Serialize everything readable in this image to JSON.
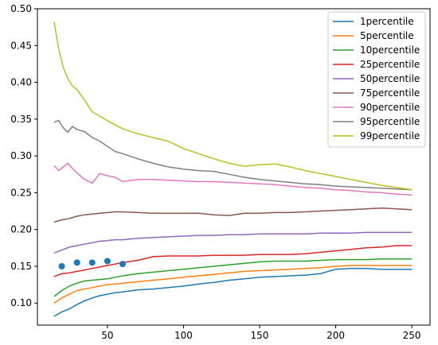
{
  "chart_data": {
    "type": "line",
    "title": "",
    "xlabel": "",
    "ylabel": "",
    "xlim": [
      4,
      262
    ],
    "ylim": [
      0.07,
      0.5
    ],
    "x_ticks": [
      50,
      100,
      150,
      200,
      250
    ],
    "y_ticks": [
      0.1,
      0.15,
      0.2,
      0.25,
      0.3,
      0.35,
      0.4,
      0.45,
      0.5
    ],
    "x_tick_labels": [
      "50",
      "100",
      "150",
      "200",
      "250"
    ],
    "y_tick_labels": [
      "0.10",
      "0.15",
      "0.20",
      "0.25",
      "0.30",
      "0.35",
      "0.40",
      "0.45",
      "0.50"
    ],
    "grid": false,
    "legend_position": "top-right",
    "series": [
      {
        "name": "1percentile",
        "color": "#1f77b4",
        "x": [
          15,
          20,
          25,
          30,
          35,
          40,
          45,
          50,
          55,
          60,
          70,
          80,
          90,
          100,
          110,
          120,
          130,
          140,
          150,
          160,
          170,
          180,
          190,
          200,
          210,
          220,
          230,
          240,
          250
        ],
        "y": [
          0.082,
          0.088,
          0.092,
          0.098,
          0.103,
          0.107,
          0.11,
          0.112,
          0.114,
          0.115,
          0.118,
          0.119,
          0.121,
          0.123,
          0.126,
          0.128,
          0.131,
          0.133,
          0.135,
          0.136,
          0.137,
          0.138,
          0.14,
          0.146,
          0.147,
          0.147,
          0.146,
          0.146,
          0.146
        ]
      },
      {
        "name": "5percentile",
        "color": "#ff7f0e",
        "x": [
          15,
          20,
          25,
          30,
          35,
          40,
          45,
          50,
          55,
          60,
          70,
          80,
          90,
          100,
          110,
          120,
          130,
          140,
          150,
          160,
          170,
          180,
          190,
          200,
          210,
          220,
          230,
          240,
          250
        ],
        "y": [
          0.1,
          0.107,
          0.112,
          0.117,
          0.119,
          0.121,
          0.123,
          0.125,
          0.126,
          0.127,
          0.129,
          0.131,
          0.133,
          0.135,
          0.137,
          0.139,
          0.141,
          0.143,
          0.144,
          0.145,
          0.146,
          0.147,
          0.148,
          0.15,
          0.151,
          0.151,
          0.151,
          0.151,
          0.151
        ]
      },
      {
        "name": "10percentile",
        "color": "#2ca02c",
        "x": [
          15,
          20,
          25,
          30,
          35,
          40,
          45,
          50,
          55,
          60,
          70,
          80,
          90,
          100,
          110,
          120,
          130,
          140,
          150,
          160,
          170,
          180,
          190,
          200,
          210,
          220,
          230,
          240,
          250
        ],
        "y": [
          0.109,
          0.117,
          0.123,
          0.127,
          0.13,
          0.131,
          0.132,
          0.133,
          0.135,
          0.137,
          0.14,
          0.142,
          0.144,
          0.146,
          0.148,
          0.15,
          0.152,
          0.154,
          0.156,
          0.157,
          0.157,
          0.157,
          0.158,
          0.159,
          0.159,
          0.159,
          0.16,
          0.16,
          0.16
        ]
      },
      {
        "name": "25percentile",
        "color": "#d62728",
        "x": [
          15,
          20,
          25,
          30,
          35,
          40,
          45,
          50,
          55,
          60,
          70,
          80,
          90,
          100,
          110,
          120,
          130,
          140,
          150,
          160,
          170,
          180,
          190,
          200,
          210,
          220,
          230,
          240,
          250
        ],
        "y": [
          0.136,
          0.14,
          0.141,
          0.143,
          0.145,
          0.147,
          0.149,
          0.151,
          0.153,
          0.155,
          0.158,
          0.163,
          0.164,
          0.164,
          0.164,
          0.165,
          0.165,
          0.165,
          0.166,
          0.166,
          0.166,
          0.167,
          0.169,
          0.171,
          0.173,
          0.175,
          0.176,
          0.178,
          0.178
        ]
      },
      {
        "name": "50percentile",
        "color": "#9467bd",
        "x": [
          15,
          20,
          25,
          30,
          35,
          40,
          45,
          50,
          55,
          60,
          70,
          80,
          90,
          100,
          110,
          120,
          130,
          140,
          150,
          160,
          170,
          180,
          190,
          200,
          210,
          220,
          230,
          240,
          250
        ],
        "y": [
          0.168,
          0.172,
          0.176,
          0.178,
          0.18,
          0.182,
          0.184,
          0.185,
          0.186,
          0.186,
          0.188,
          0.189,
          0.19,
          0.191,
          0.192,
          0.192,
          0.193,
          0.193,
          0.194,
          0.194,
          0.194,
          0.194,
          0.195,
          0.195,
          0.195,
          0.196,
          0.196,
          0.196,
          0.196
        ]
      },
      {
        "name": "75percentile",
        "color": "#8c564b",
        "x": [
          15,
          20,
          25,
          30,
          35,
          40,
          45,
          50,
          55,
          60,
          70,
          80,
          90,
          100,
          110,
          120,
          130,
          140,
          150,
          160,
          170,
          180,
          190,
          200,
          210,
          220,
          230,
          240,
          250
        ],
        "y": [
          0.21,
          0.213,
          0.215,
          0.218,
          0.22,
          0.221,
          0.222,
          0.223,
          0.224,
          0.224,
          0.223,
          0.222,
          0.222,
          0.222,
          0.222,
          0.22,
          0.219,
          0.222,
          0.222,
          0.223,
          0.223,
          0.224,
          0.225,
          0.226,
          0.227,
          0.228,
          0.229,
          0.228,
          0.227
        ]
      },
      {
        "name": "90percentile",
        "color": "#e377c2",
        "x": [
          15,
          18,
          21,
          24,
          27,
          30,
          35,
          40,
          45,
          50,
          55,
          60,
          70,
          80,
          90,
          100,
          110,
          120,
          130,
          140,
          150,
          160,
          170,
          180,
          190,
          200,
          210,
          220,
          230,
          240,
          250
        ],
        "y": [
          0.287,
          0.28,
          0.285,
          0.29,
          0.283,
          0.277,
          0.268,
          0.263,
          0.276,
          0.273,
          0.271,
          0.265,
          0.268,
          0.268,
          0.267,
          0.266,
          0.265,
          0.265,
          0.264,
          0.263,
          0.262,
          0.261,
          0.259,
          0.257,
          0.256,
          0.254,
          0.253,
          0.251,
          0.25,
          0.248,
          0.247
        ]
      },
      {
        "name": "95percentile",
        "color": "#7f7f7f",
        "x": [
          15,
          18,
          21,
          24,
          27,
          30,
          35,
          40,
          45,
          50,
          55,
          60,
          70,
          80,
          90,
          100,
          110,
          120,
          130,
          140,
          150,
          160,
          170,
          180,
          190,
          200,
          210,
          220,
          230,
          240,
          250
        ],
        "y": [
          0.346,
          0.348,
          0.338,
          0.332,
          0.34,
          0.336,
          0.333,
          0.325,
          0.32,
          0.313,
          0.306,
          0.303,
          0.296,
          0.29,
          0.285,
          0.282,
          0.28,
          0.279,
          0.275,
          0.271,
          0.268,
          0.266,
          0.264,
          0.262,
          0.261,
          0.259,
          0.258,
          0.257,
          0.256,
          0.255,
          0.254
        ]
      },
      {
        "name": "99percentile",
        "color": "#bcbd22",
        "x": [
          15,
          18,
          21,
          24,
          27,
          30,
          35,
          40,
          45,
          50,
          55,
          60,
          70,
          80,
          90,
          100,
          110,
          120,
          130,
          140,
          150,
          160,
          170,
          180,
          190,
          200,
          210,
          220,
          230,
          240,
          250
        ],
        "y": [
          0.482,
          0.445,
          0.42,
          0.405,
          0.395,
          0.39,
          0.376,
          0.36,
          0.354,
          0.348,
          0.342,
          0.337,
          0.33,
          0.325,
          0.32,
          0.31,
          0.303,
          0.296,
          0.29,
          0.286,
          0.288,
          0.289,
          0.285,
          0.28,
          0.276,
          0.272,
          0.268,
          0.264,
          0.26,
          0.257,
          0.254
        ]
      }
    ],
    "points": {
      "color": "#1f77b4",
      "x": [
        20,
        30,
        40,
        50,
        60
      ],
      "y": [
        0.15,
        0.155,
        0.155,
        0.157,
        0.153
      ]
    }
  }
}
